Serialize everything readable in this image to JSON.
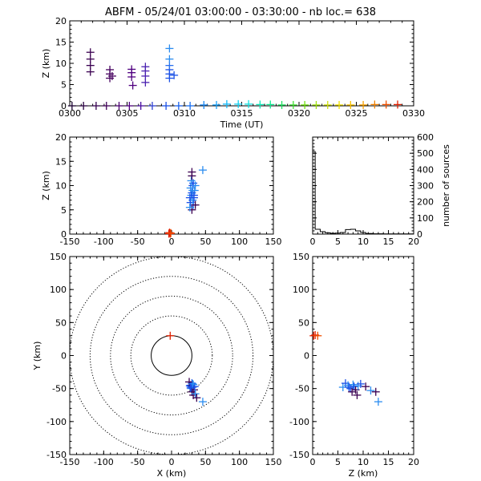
{
  "title": "ABFM - 05/24/01 03:00:00 - 03:30:00 - nb loc.=    638",
  "colors": {
    "early": "#3a0060",
    "violet": "#5a1a9a",
    "blue": "#1a50e6",
    "lightblue": "#2a8cf0",
    "red": "#e02000"
  },
  "chart_data": [
    {
      "id": "time_height",
      "type": "scatter",
      "xlabel": "Time (UT)",
      "ylabel": "Z (km)",
      "xlim": [
        0,
        30
      ],
      "ylim": [
        0,
        20
      ],
      "xtick_labels": [
        "0300",
        "0305",
        "0310",
        "0315",
        "0320",
        "0325",
        "0330"
      ],
      "yticks": [
        0,
        5,
        10,
        15,
        20
      ],
      "points": [
        {
          "t": 0.2,
          "z": 0.0,
          "c": "#1a0030"
        },
        {
          "t": 1.2,
          "z": 0.0,
          "c": "#2a0040"
        },
        {
          "t": 1.8,
          "z": 8.0,
          "c": "#3a0050"
        },
        {
          "t": 1.8,
          "z": 9.5,
          "c": "#3a0050"
        },
        {
          "t": 1.8,
          "z": 11.0,
          "c": "#3a0050"
        },
        {
          "t": 1.8,
          "z": 12.6,
          "c": "#3a0050"
        },
        {
          "t": 2.3,
          "z": 0.0,
          "c": "#350050"
        },
        {
          "t": 3.2,
          "z": 0.0,
          "c": "#400058"
        },
        {
          "t": 3.5,
          "z": 6.5,
          "c": "#45005e"
        },
        {
          "t": 3.5,
          "z": 7.5,
          "c": "#45005e"
        },
        {
          "t": 3.5,
          "z": 8.5,
          "c": "#45005e"
        },
        {
          "t": 3.7,
          "z": 7.0,
          "c": "#45005e"
        },
        {
          "t": 4.3,
          "z": 0.0,
          "c": "#4a0070"
        },
        {
          "t": 5.2,
          "z": 0.0,
          "c": "#500080"
        },
        {
          "t": 5.4,
          "z": 6.8,
          "c": "#500080"
        },
        {
          "t": 5.4,
          "z": 7.8,
          "c": "#500080"
        },
        {
          "t": 5.4,
          "z": 8.6,
          "c": "#500080"
        },
        {
          "t": 5.5,
          "z": 4.8,
          "c": "#500080"
        },
        {
          "t": 6.2,
          "z": 0.0,
          "c": "#4a10a0"
        },
        {
          "t": 6.6,
          "z": 5.5,
          "c": "#4a20b0"
        },
        {
          "t": 6.6,
          "z": 7.0,
          "c": "#4a20b0"
        },
        {
          "t": 6.6,
          "z": 8.2,
          "c": "#4a20b0"
        },
        {
          "t": 6.6,
          "z": 9.2,
          "c": "#4a20b0"
        },
        {
          "t": 7.2,
          "z": 0.0,
          "c": "#3040d0"
        },
        {
          "t": 8.4,
          "z": 0.0,
          "c": "#1a50e6"
        },
        {
          "t": 8.7,
          "z": 6.5,
          "c": "#1a50e6"
        },
        {
          "t": 8.7,
          "z": 7.5,
          "c": "#1a50e6"
        },
        {
          "t": 8.7,
          "z": 8.5,
          "c": "#1a50e6"
        },
        {
          "t": 8.7,
          "z": 9.5,
          "c": "#2a70ee"
        },
        {
          "t": 8.7,
          "z": 11.0,
          "c": "#2a8cf0"
        },
        {
          "t": 8.7,
          "z": 13.5,
          "c": "#2a8cf0"
        },
        {
          "t": 9.1,
          "z": 7.2,
          "c": "#1a50e6"
        },
        {
          "t": 9.5,
          "z": 0.0,
          "c": "#1a60ea"
        },
        {
          "t": 10.5,
          "z": 0.0,
          "c": "#1a70f0"
        },
        {
          "t": 11.7,
          "z": 0.2,
          "c": "#1a88f4"
        },
        {
          "t": 12.8,
          "z": 0.2,
          "c": "#18a0f8"
        },
        {
          "t": 13.7,
          "z": 0.4,
          "c": "#10b8f8"
        },
        {
          "t": 14.7,
          "z": 0.4,
          "c": "#10d0f0"
        },
        {
          "t": 15.6,
          "z": 0.4,
          "c": "#10e0e0"
        },
        {
          "t": 16.6,
          "z": 0.3,
          "c": "#10e8b8"
        },
        {
          "t": 17.5,
          "z": 0.3,
          "c": "#10e890"
        },
        {
          "t": 18.5,
          "z": 0.2,
          "c": "#20e060"
        },
        {
          "t": 19.5,
          "z": 0.2,
          "c": "#40e030"
        },
        {
          "t": 20.5,
          "z": 0.2,
          "c": "#70e010"
        },
        {
          "t": 21.5,
          "z": 0.2,
          "c": "#a0e010"
        },
        {
          "t": 22.5,
          "z": 0.2,
          "c": "#d0e010"
        },
        {
          "t": 23.5,
          "z": 0.2,
          "c": "#f0e000"
        },
        {
          "t": 24.5,
          "z": 0.2,
          "c": "#f8c000"
        },
        {
          "t": 25.6,
          "z": 0.2,
          "c": "#f8a000"
        },
        {
          "t": 26.6,
          "z": 0.3,
          "c": "#f08000"
        },
        {
          "t": 27.6,
          "z": 0.3,
          "c": "#f05000"
        },
        {
          "t": 28.6,
          "z": 0.3,
          "c": "#e02000"
        }
      ]
    },
    {
      "id": "x_z",
      "type": "scatter",
      "xlim": [
        -150,
        150
      ],
      "ylim": [
        0,
        20
      ],
      "ylabel": "Z (km)",
      "xticks": [
        -150,
        -100,
        -50,
        0,
        50,
        100,
        150
      ],
      "yticks": [
        0,
        5,
        10,
        15,
        20
      ],
      "points": [
        {
          "x": 30,
          "z": 5.0,
          "c": "#3a0050"
        },
        {
          "x": 32,
          "z": 6.0,
          "c": "#1a50e6"
        },
        {
          "x": 28,
          "z": 6.5,
          "c": "#1a50e6"
        },
        {
          "x": 31,
          "z": 7.0,
          "c": "#2a8cf0"
        },
        {
          "x": 33,
          "z": 7.5,
          "c": "#1a50e6"
        },
        {
          "x": 29,
          "z": 8.0,
          "c": "#2a8cf0"
        },
        {
          "x": 30,
          "z": 8.5,
          "c": "#1a50e6"
        },
        {
          "x": 34,
          "z": 9.0,
          "c": "#2a8cf0"
        },
        {
          "x": 28,
          "z": 9.5,
          "c": "#2a8cf0"
        },
        {
          "x": 31,
          "z": 10.0,
          "c": "#1a50e6"
        },
        {
          "x": 32,
          "z": 10.5,
          "c": "#1a50e6"
        },
        {
          "x": 29,
          "z": 11.0,
          "c": "#2a8cf0"
        },
        {
          "x": 30,
          "z": 12.0,
          "c": "#3a0050"
        },
        {
          "x": 30,
          "z": 12.8,
          "c": "#3a0050"
        },
        {
          "x": 46,
          "z": 13.2,
          "c": "#2a8cf0"
        },
        {
          "x": 35,
          "z": 6.0,
          "c": "#3a0050"
        },
        {
          "x": 27,
          "z": 5.5,
          "c": "#2a8cf0"
        },
        {
          "x": 33,
          "z": 8.0,
          "c": "#1a50e6"
        },
        {
          "x": 27,
          "z": 7.5,
          "c": "#1a50e6"
        },
        {
          "x": 35,
          "z": 10.0,
          "c": "#2a8cf0"
        },
        {
          "x": 31,
          "z": 9.0,
          "c": "#2a8cf0"
        },
        {
          "x": -4,
          "z": 0.1,
          "c": "#e02000"
        },
        {
          "x": -2,
          "z": 0.1,
          "c": "#e02000"
        },
        {
          "x": -3,
          "z": 0.3,
          "c": "#e02000"
        },
        {
          "x": -1,
          "z": 0.2,
          "c": "#f05000"
        }
      ]
    },
    {
      "id": "histogram",
      "type": "line",
      "xlim": [
        0,
        20
      ],
      "ylim": [
        0,
        600
      ],
      "ylabel": "number of sources",
      "xticks": [
        0,
        5,
        10,
        15,
        20
      ],
      "yticks": [
        0,
        100,
        200,
        300,
        400,
        500,
        600
      ],
      "steps": [
        {
          "z": 0.0,
          "n": 510
        },
        {
          "z": 0.5,
          "n": 30
        },
        {
          "z": 1.5,
          "n": 15
        },
        {
          "z": 2.5,
          "n": 8
        },
        {
          "z": 3.5,
          "n": 5
        },
        {
          "z": 4.5,
          "n": 6
        },
        {
          "z": 5.5,
          "n": 10
        },
        {
          "z": 6.5,
          "n": 28
        },
        {
          "z": 7.5,
          "n": 30
        },
        {
          "z": 8.5,
          "n": 20
        },
        {
          "z": 9.5,
          "n": 10
        },
        {
          "z": 10.5,
          "n": 4
        },
        {
          "z": 12.0,
          "n": 2
        },
        {
          "z": 14.0,
          "n": 1
        },
        {
          "z": 20.0,
          "n": 1
        }
      ]
    },
    {
      "id": "plan_view",
      "type": "scatter",
      "xlabel": "X (km)",
      "ylabel": "Y (km)",
      "xlim": [
        -150,
        150
      ],
      "ylim": [
        -150,
        150
      ],
      "xticks": [
        -150,
        -100,
        -50,
        0,
        50,
        100,
        150
      ],
      "yticks": [
        -150,
        -100,
        -50,
        0,
        50,
        100,
        150
      ],
      "range_rings_km": [
        30,
        60,
        90,
        120,
        150
      ],
      "points": [
        {
          "x": -2,
          "y": 30,
          "c": "#e02000"
        },
        {
          "x": 30,
          "y": -42,
          "c": "#1a50e6"
        },
        {
          "x": 28,
          "y": -45,
          "c": "#1a50e6"
        },
        {
          "x": 32,
          "y": -44,
          "c": "#2a8cf0"
        },
        {
          "x": 31,
          "y": -48,
          "c": "#1a50e6"
        },
        {
          "x": 29,
          "y": -50,
          "c": "#2a8cf0"
        },
        {
          "x": 27,
          "y": -46,
          "c": "#1a50e6"
        },
        {
          "x": 33,
          "y": -52,
          "c": "#3a0050"
        },
        {
          "x": 26,
          "y": -40,
          "c": "#3a0050"
        },
        {
          "x": 34,
          "y": -47,
          "c": "#1a50e6"
        },
        {
          "x": 30,
          "y": -55,
          "c": "#3a0050"
        },
        {
          "x": 32,
          "y": -60,
          "c": "#3a0050"
        },
        {
          "x": 35,
          "y": -58,
          "c": "#2a8cf0"
        },
        {
          "x": 37,
          "y": -64,
          "c": "#3a0050"
        },
        {
          "x": 46,
          "y": -70,
          "c": "#2a8cf0"
        },
        {
          "x": 29,
          "y": -47,
          "c": "#1a50e6"
        },
        {
          "x": 31,
          "y": -43,
          "c": "#2a8cf0"
        },
        {
          "x": 28,
          "y": -49,
          "c": "#1a50e6"
        }
      ]
    },
    {
      "id": "z_y",
      "type": "scatter",
      "xlabel": "Z (km)",
      "xlim": [
        0,
        20
      ],
      "ylim": [
        -150,
        150
      ],
      "xticks": [
        0,
        5,
        10,
        15,
        20
      ],
      "yticks": [
        -150,
        -100,
        -50,
        0,
        50,
        100,
        150
      ],
      "points": [
        {
          "z": 0.2,
          "y": 30,
          "c": "#e02000"
        },
        {
          "z": 0.5,
          "y": 31,
          "c": "#e02000"
        },
        {
          "z": 1.0,
          "y": 30,
          "c": "#f05000"
        },
        {
          "z": 6.0,
          "y": -48,
          "c": "#2a8cf0"
        },
        {
          "z": 6.5,
          "y": -42,
          "c": "#1a50e6"
        },
        {
          "z": 7.0,
          "y": -45,
          "c": "#2a8cf0"
        },
        {
          "z": 7.5,
          "y": -50,
          "c": "#1a50e6"
        },
        {
          "z": 8.0,
          "y": -44,
          "c": "#2a8cf0"
        },
        {
          "z": 8.2,
          "y": -47,
          "c": "#1a50e6"
        },
        {
          "z": 8.5,
          "y": -52,
          "c": "#3a0050"
        },
        {
          "z": 9.0,
          "y": -46,
          "c": "#2a8cf0"
        },
        {
          "z": 9.5,
          "y": -43,
          "c": "#1a50e6"
        },
        {
          "z": 7.8,
          "y": -55,
          "c": "#3a0050"
        },
        {
          "z": 8.8,
          "y": -60,
          "c": "#3a0050"
        },
        {
          "z": 10.5,
          "y": -47,
          "c": "#3a0050"
        },
        {
          "z": 11.5,
          "y": -53,
          "c": "#2a8cf0"
        },
        {
          "z": 12.5,
          "y": -55,
          "c": "#3a0050"
        },
        {
          "z": 13.0,
          "y": -70,
          "c": "#2a8cf0"
        },
        {
          "z": 7.2,
          "y": -48,
          "c": "#1a50e6"
        }
      ]
    }
  ]
}
